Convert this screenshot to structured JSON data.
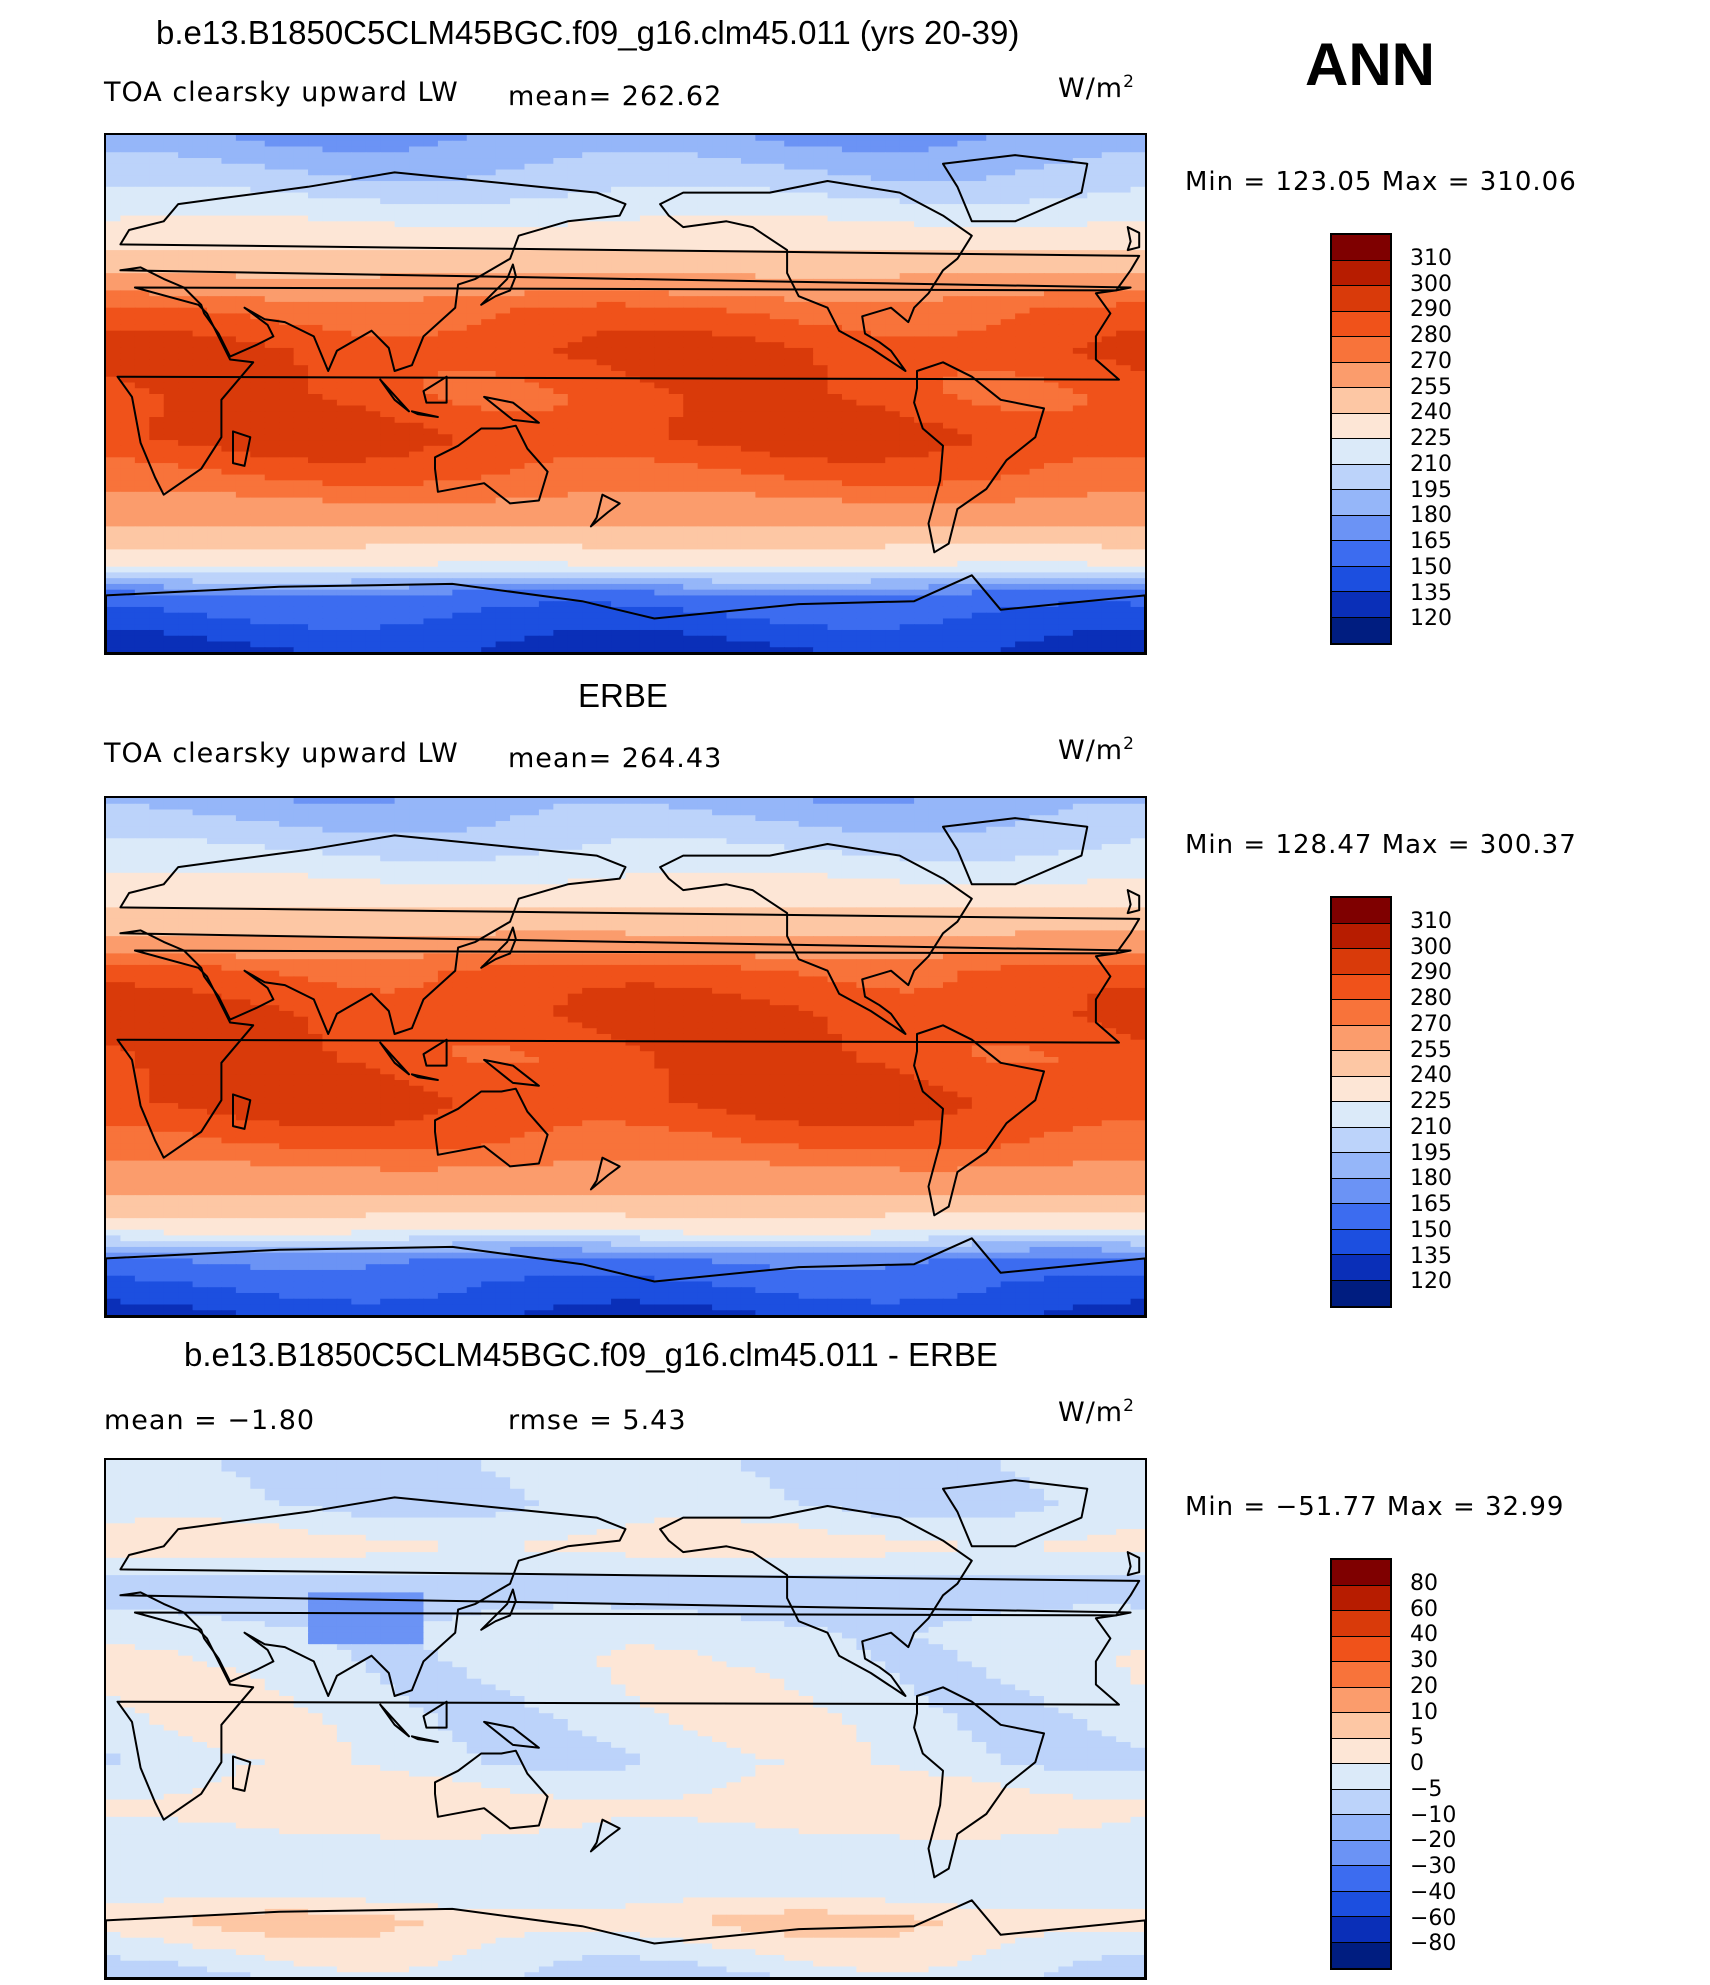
{
  "season": "ANN",
  "units": "W/m",
  "units_sup": "2",
  "panels": [
    {
      "title": "b.e13.B1850C5CLM45BGC.f09_g16.clm45.011 (yrs 20-39)",
      "variable": "TOA clearsky upward LW",
      "stat_text": "mean=  262.62",
      "min_text": "Min  =  123.05  Max  =  310.06",
      "levels": [
        "310",
        "300",
        "290",
        "280",
        "270",
        "255",
        "240",
        "225",
        "210",
        "195",
        "180",
        "165",
        "150",
        "135",
        "120"
      ]
    },
    {
      "title": "ERBE",
      "variable": "TOA clearsky upward LW",
      "stat_text": "mean=  264.43",
      "min_text": "Min  =  128.47  Max  =  300.37",
      "levels": [
        "310",
        "300",
        "290",
        "280",
        "270",
        "255",
        "240",
        "225",
        "210",
        "195",
        "180",
        "165",
        "150",
        "135",
        "120"
      ]
    },
    {
      "title": "b.e13.B1850C5CLM45BGC.f09_g16.clm45.011 - ERBE",
      "mean_text": "mean  =    −1.80",
      "rmse_text": "rmse  =     5.43",
      "min_text": "Min  =  −51.77  Max  =    32.99",
      "levels": [
        "80",
        "60",
        "40",
        "30",
        "20",
        "10",
        "5",
        "0",
        "−5",
        "−10",
        "−20",
        "−30",
        "−40",
        "−60",
        "−80"
      ]
    }
  ],
  "colorbar_colors": [
    "#7f0000",
    "#b71c00",
    "#d93a0a",
    "#f0521a",
    "#f8733a",
    "#fb9c6c",
    "#fdc7a4",
    "#fde6d6",
    "#dbeaf9",
    "#bcd3fa",
    "#95b6f9",
    "#6b93f5",
    "#3c6cf0",
    "#1c4fe0",
    "#0a2fb8",
    "#001d80"
  ],
  "colors": {
    "ocean_warm": "#f0521a",
    "land_outline": "#000000"
  },
  "chart_data": [
    {
      "type": "heatmap",
      "title": "b.e13.B1850C5CLM45BGC.f09_g16.clm45.011 (yrs 20-39)",
      "variable": "TOA clearsky upward LW",
      "units": "W/m2",
      "mean": 262.62,
      "min": 123.05,
      "max": 310.06,
      "contour_levels": [
        120,
        135,
        150,
        165,
        180,
        195,
        210,
        225,
        240,
        255,
        270,
        280,
        290,
        300,
        310
      ],
      "lat_bands": [
        [
          90,
          180
        ],
        [
          75,
          200
        ],
        [
          60,
          225
        ],
        [
          45,
          248
        ],
        [
          30,
          278
        ],
        [
          15,
          290
        ],
        [
          0,
          285
        ],
        [
          -15,
          292
        ],
        [
          -30,
          278
        ],
        [
          -45,
          258
        ],
        [
          -60,
          225
        ],
        [
          -70,
          160
        ],
        [
          -90,
          130
        ]
      ]
    },
    {
      "type": "heatmap",
      "title": "ERBE",
      "variable": "TOA clearsky upward LW",
      "units": "W/m2",
      "mean": 264.43,
      "min": 128.47,
      "max": 300.37,
      "contour_levels": [
        120,
        135,
        150,
        165,
        180,
        195,
        210,
        225,
        240,
        255,
        270,
        280,
        290,
        300,
        310
      ],
      "lat_bands": [
        [
          90,
          185
        ],
        [
          75,
          205
        ],
        [
          60,
          228
        ],
        [
          45,
          250
        ],
        [
          30,
          282
        ],
        [
          15,
          290
        ],
        [
          0,
          287
        ],
        [
          -15,
          292
        ],
        [
          -30,
          280
        ],
        [
          -45,
          260
        ],
        [
          -60,
          230
        ],
        [
          -70,
          165
        ],
        [
          -90,
          135
        ]
      ]
    },
    {
      "type": "heatmap",
      "title": "b.e13.B1850C5CLM45BGC.f09_g16.clm45.011 - ERBE",
      "units": "W/m2",
      "mean": -1.8,
      "rmse": 5.43,
      "min": -51.77,
      "max": 32.99,
      "contour_levels": [
        -80,
        -60,
        -40,
        -30,
        -20,
        -10,
        -5,
        0,
        5,
        10,
        20,
        30,
        40,
        60,
        80
      ],
      "lat_bands": [
        [
          90,
          -5
        ],
        [
          75,
          -5
        ],
        [
          60,
          2
        ],
        [
          45,
          -8
        ],
        [
          30,
          -3
        ],
        [
          15,
          -2
        ],
        [
          0,
          -2
        ],
        [
          -15,
          -3
        ],
        [
          -30,
          3
        ],
        [
          -45,
          -2
        ],
        [
          -60,
          -3
        ],
        [
          -70,
          5
        ],
        [
          -90,
          -5
        ]
      ]
    }
  ]
}
